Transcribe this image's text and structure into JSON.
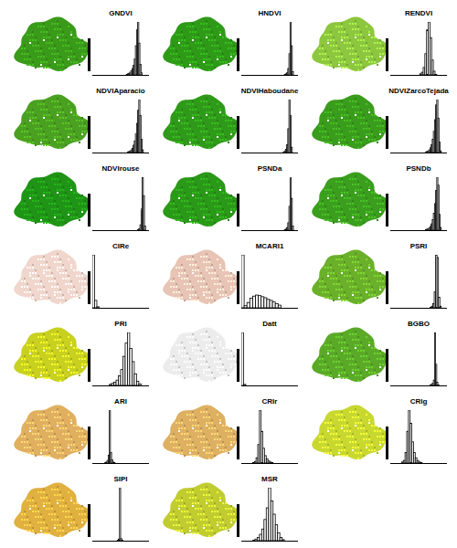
{
  "chart_data": [
    {
      "type": "histogram",
      "title": "GNDVI",
      "color": "#3a9a1a",
      "xlim": [
        0,
        1
      ],
      "ylim": [
        0,
        100
      ],
      "tick_labels": false,
      "bins": [
        0.6,
        0.62,
        0.64,
        0.66,
        0.68,
        0.7,
        0.72,
        0.74,
        0.76,
        0.78,
        0.8,
        0.82,
        0.84,
        0.86,
        0.88
      ],
      "counts": [
        1,
        2,
        3,
        5,
        8,
        12,
        18,
        30,
        55,
        85,
        100,
        60,
        20,
        4
      ]
    },
    {
      "type": "histogram",
      "title": "HNDVI",
      "color": "#2e9a18",
      "xlim": [
        0,
        1
      ],
      "ylim": [
        0,
        100
      ],
      "tick_labels": false,
      "bins": [
        0.76,
        0.78,
        0.8,
        0.82,
        0.84,
        0.86,
        0.88,
        0.9,
        0.92
      ],
      "counts": [
        1,
        2,
        4,
        12,
        40,
        100,
        55,
        6
      ]
    },
    {
      "type": "histogram",
      "title": "RENDVI",
      "color": "#8dc63f",
      "xlim": [
        0,
        1
      ],
      "ylim": [
        0,
        100
      ],
      "tick_labels": false,
      "bins": [
        0.52,
        0.55,
        0.58,
        0.61,
        0.64,
        0.67,
        0.7,
        0.73,
        0.76,
        0.79,
        0.82
      ],
      "counts": [
        2,
        5,
        14,
        40,
        85,
        100,
        70,
        28,
        7,
        1
      ]
    },
    {
      "type": "histogram",
      "title": "NDVIAparacio",
      "color": "#4aa020",
      "xlim": [
        0,
        1
      ],
      "ylim": [
        0,
        100
      ],
      "tick_labels": false,
      "bins": [
        0.62,
        0.64,
        0.66,
        0.68,
        0.7,
        0.72,
        0.74,
        0.76,
        0.78,
        0.8,
        0.82,
        0.84,
        0.86,
        0.88,
        0.9
      ],
      "counts": [
        1,
        2,
        3,
        5,
        8,
        14,
        22,
        35,
        55,
        80,
        100,
        70,
        25,
        5
      ]
    },
    {
      "type": "histogram",
      "title": "NDVIHaboudane",
      "color": "#2f9a1a",
      "xlim": [
        0,
        1
      ],
      "ylim": [
        0,
        100
      ],
      "tick_labels": false,
      "bins": [
        0.74,
        0.76,
        0.78,
        0.8,
        0.82,
        0.84,
        0.86,
        0.88,
        0.9
      ],
      "counts": [
        1,
        3,
        6,
        15,
        45,
        100,
        70,
        10
      ]
    },
    {
      "type": "histogram",
      "title": "NDVIZarcoTejada",
      "color": "#3a9c1c",
      "xlim": [
        0,
        1
      ],
      "ylim": [
        0,
        100
      ],
      "tick_labels": false,
      "bins": [
        0.62,
        0.64,
        0.66,
        0.68,
        0.7,
        0.72,
        0.74,
        0.76,
        0.78,
        0.8,
        0.82,
        0.84,
        0.86,
        0.88,
        0.9
      ],
      "counts": [
        1,
        2,
        3,
        5,
        9,
        15,
        25,
        40,
        62,
        90,
        100,
        65,
        20,
        3
      ]
    },
    {
      "type": "histogram",
      "title": "NDVIrouse",
      "color": "#1f9416",
      "xlim": [
        0,
        1
      ],
      "ylim": [
        0,
        100
      ],
      "tick_labels": false,
      "bins": [
        0.8,
        0.82,
        0.84,
        0.86,
        0.88,
        0.9,
        0.92,
        0.94
      ],
      "counts": [
        1,
        3,
        10,
        40,
        100,
        65,
        8
      ]
    },
    {
      "type": "histogram",
      "title": "PSNDa",
      "color": "#2a9818",
      "xlim": [
        0,
        1
      ],
      "ylim": [
        0,
        100
      ],
      "tick_labels": false,
      "bins": [
        0.76,
        0.78,
        0.8,
        0.82,
        0.84,
        0.86,
        0.88,
        0.9,
        0.92
      ],
      "counts": [
        1,
        2,
        5,
        14,
        45,
        100,
        60,
        8
      ]
    },
    {
      "type": "histogram",
      "title": "PSNDb",
      "color": "#3b9e1e",
      "xlim": [
        0,
        1
      ],
      "ylim": [
        0,
        100
      ],
      "tick_labels": false,
      "bins": [
        0.62,
        0.64,
        0.66,
        0.68,
        0.7,
        0.72,
        0.74,
        0.76,
        0.78,
        0.8,
        0.82,
        0.84,
        0.86,
        0.88,
        0.9
      ],
      "counts": [
        1,
        2,
        3,
        4,
        7,
        12,
        20,
        32,
        50,
        75,
        100,
        85,
        30,
        5
      ]
    },
    {
      "type": "histogram",
      "title": "CIRe",
      "color": "#f0d6cc",
      "xlim": [
        0,
        1
      ],
      "ylim": [
        0,
        100
      ],
      "tick_labels": false,
      "bins": [
        0,
        0.04,
        0.08,
        0.12
      ],
      "counts": [
        100,
        14,
        2
      ]
    },
    {
      "type": "histogram",
      "title": "MCARI1",
      "color": "#e8c4b4",
      "xlim": [
        0,
        1
      ],
      "ylim": [
        0,
        100
      ],
      "tick_labels": false,
      "bins": [
        0,
        0.05,
        0.1,
        0.15,
        0.2,
        0.25,
        0.3,
        0.35,
        0.4,
        0.45,
        0.5,
        0.55,
        0.6,
        0.65,
        0.7
      ],
      "counts": [
        100,
        4,
        10,
        18,
        22,
        24,
        23,
        21,
        19,
        16,
        14,
        11,
        8,
        5
      ]
    },
    {
      "type": "histogram",
      "title": "PSRI",
      "color": "#6ab02a",
      "xlim": [
        0,
        1
      ],
      "ylim": [
        0,
        100
      ],
      "tick_labels": false,
      "bins": [
        0.7,
        0.725,
        0.75,
        0.775,
        0.8,
        0.825,
        0.85,
        0.875,
        0.9
      ],
      "counts": [
        1,
        3,
        8,
        30,
        100,
        95,
        20,
        3
      ]
    },
    {
      "type": "histogram",
      "title": "PRI",
      "color": "#c8d020",
      "xlim": [
        0,
        1
      ],
      "ylim": [
        0,
        100
      ],
      "tick_labels": false,
      "bins": [
        0.3,
        0.34,
        0.38,
        0.42,
        0.46,
        0.5,
        0.54,
        0.58,
        0.62,
        0.66,
        0.7,
        0.74,
        0.78,
        0.82,
        0.86
      ],
      "counts": [
        2,
        4,
        6,
        10,
        18,
        30,
        55,
        80,
        100,
        70,
        45,
        22,
        8,
        3
      ]
    },
    {
      "type": "histogram",
      "title": "Datt",
      "color": "#ececec",
      "xlim": [
        0,
        1
      ],
      "ylim": [
        0,
        100
      ],
      "tick_labels": false,
      "bins": [
        0,
        0.04,
        0.08
      ],
      "counts": [
        100,
        2
      ]
    },
    {
      "type": "histogram",
      "title": "BGBO",
      "color": "#5aaa28",
      "xlim": [
        0,
        1
      ],
      "ylim": [
        0,
        100
      ],
      "tick_labels": false,
      "bins": [
        0.7,
        0.72,
        0.74,
        0.76,
        0.78,
        0.8,
        0.82,
        0.84,
        0.86
      ],
      "counts": [
        1,
        2,
        4,
        10,
        100,
        40,
        6,
        1
      ]
    },
    {
      "type": "histogram",
      "title": "ARI",
      "color": "#e0b060",
      "xlim": [
        0,
        1
      ],
      "ylim": [
        0,
        100
      ],
      "tick_labels": false,
      "bins": [
        0.22,
        0.24,
        0.26,
        0.28,
        0.3,
        0.32,
        0.34,
        0.36,
        0.38,
        0.4
      ],
      "counts": [
        1,
        2,
        5,
        15,
        100,
        20,
        6,
        2,
        1
      ]
    },
    {
      "type": "histogram",
      "title": "CRIr",
      "color": "#ddb062",
      "xlim": [
        0,
        1
      ],
      "ylim": [
        0,
        100
      ],
      "tick_labels": false,
      "bins": [
        0.2,
        0.23,
        0.26,
        0.29,
        0.32,
        0.35,
        0.38,
        0.41,
        0.44,
        0.47,
        0.5,
        0.53,
        0.56
      ],
      "counts": [
        1,
        3,
        10,
        35,
        100,
        60,
        28,
        14,
        8,
        4,
        2,
        1
      ]
    },
    {
      "type": "histogram",
      "title": "CRIg",
      "color": "#c8d830",
      "xlim": [
        0,
        1
      ],
      "ylim": [
        0,
        100
      ],
      "tick_labels": false,
      "bins": [
        0.2,
        0.23,
        0.26,
        0.29,
        0.32,
        0.35,
        0.38,
        0.41,
        0.44,
        0.47,
        0.5,
        0.53,
        0.56
      ],
      "counts": [
        2,
        5,
        20,
        60,
        100,
        75,
        40,
        20,
        10,
        5,
        2,
        1
      ]
    },
    {
      "type": "histogram",
      "title": "SIPI",
      "color": "#e0b040",
      "xlim": [
        0,
        1
      ],
      "ylim": [
        0,
        100
      ],
      "tick_labels": false,
      "bins": [
        0.44,
        0.46,
        0.48,
        0.5,
        0.52,
        0.54
      ],
      "counts": [
        1,
        3,
        100,
        4,
        1
      ]
    },
    {
      "type": "histogram",
      "title": "MSR",
      "color": "#c0cc30",
      "xlim": [
        0,
        1
      ],
      "ylim": [
        0,
        100
      ],
      "tick_labels": false,
      "bins": [
        0.2,
        0.24,
        0.28,
        0.32,
        0.36,
        0.4,
        0.44,
        0.48,
        0.52,
        0.56,
        0.6,
        0.64,
        0.68,
        0.72,
        0.76
      ],
      "counts": [
        1,
        3,
        6,
        12,
        22,
        40,
        62,
        100,
        75,
        50,
        30,
        15,
        6,
        2
      ]
    }
  ]
}
